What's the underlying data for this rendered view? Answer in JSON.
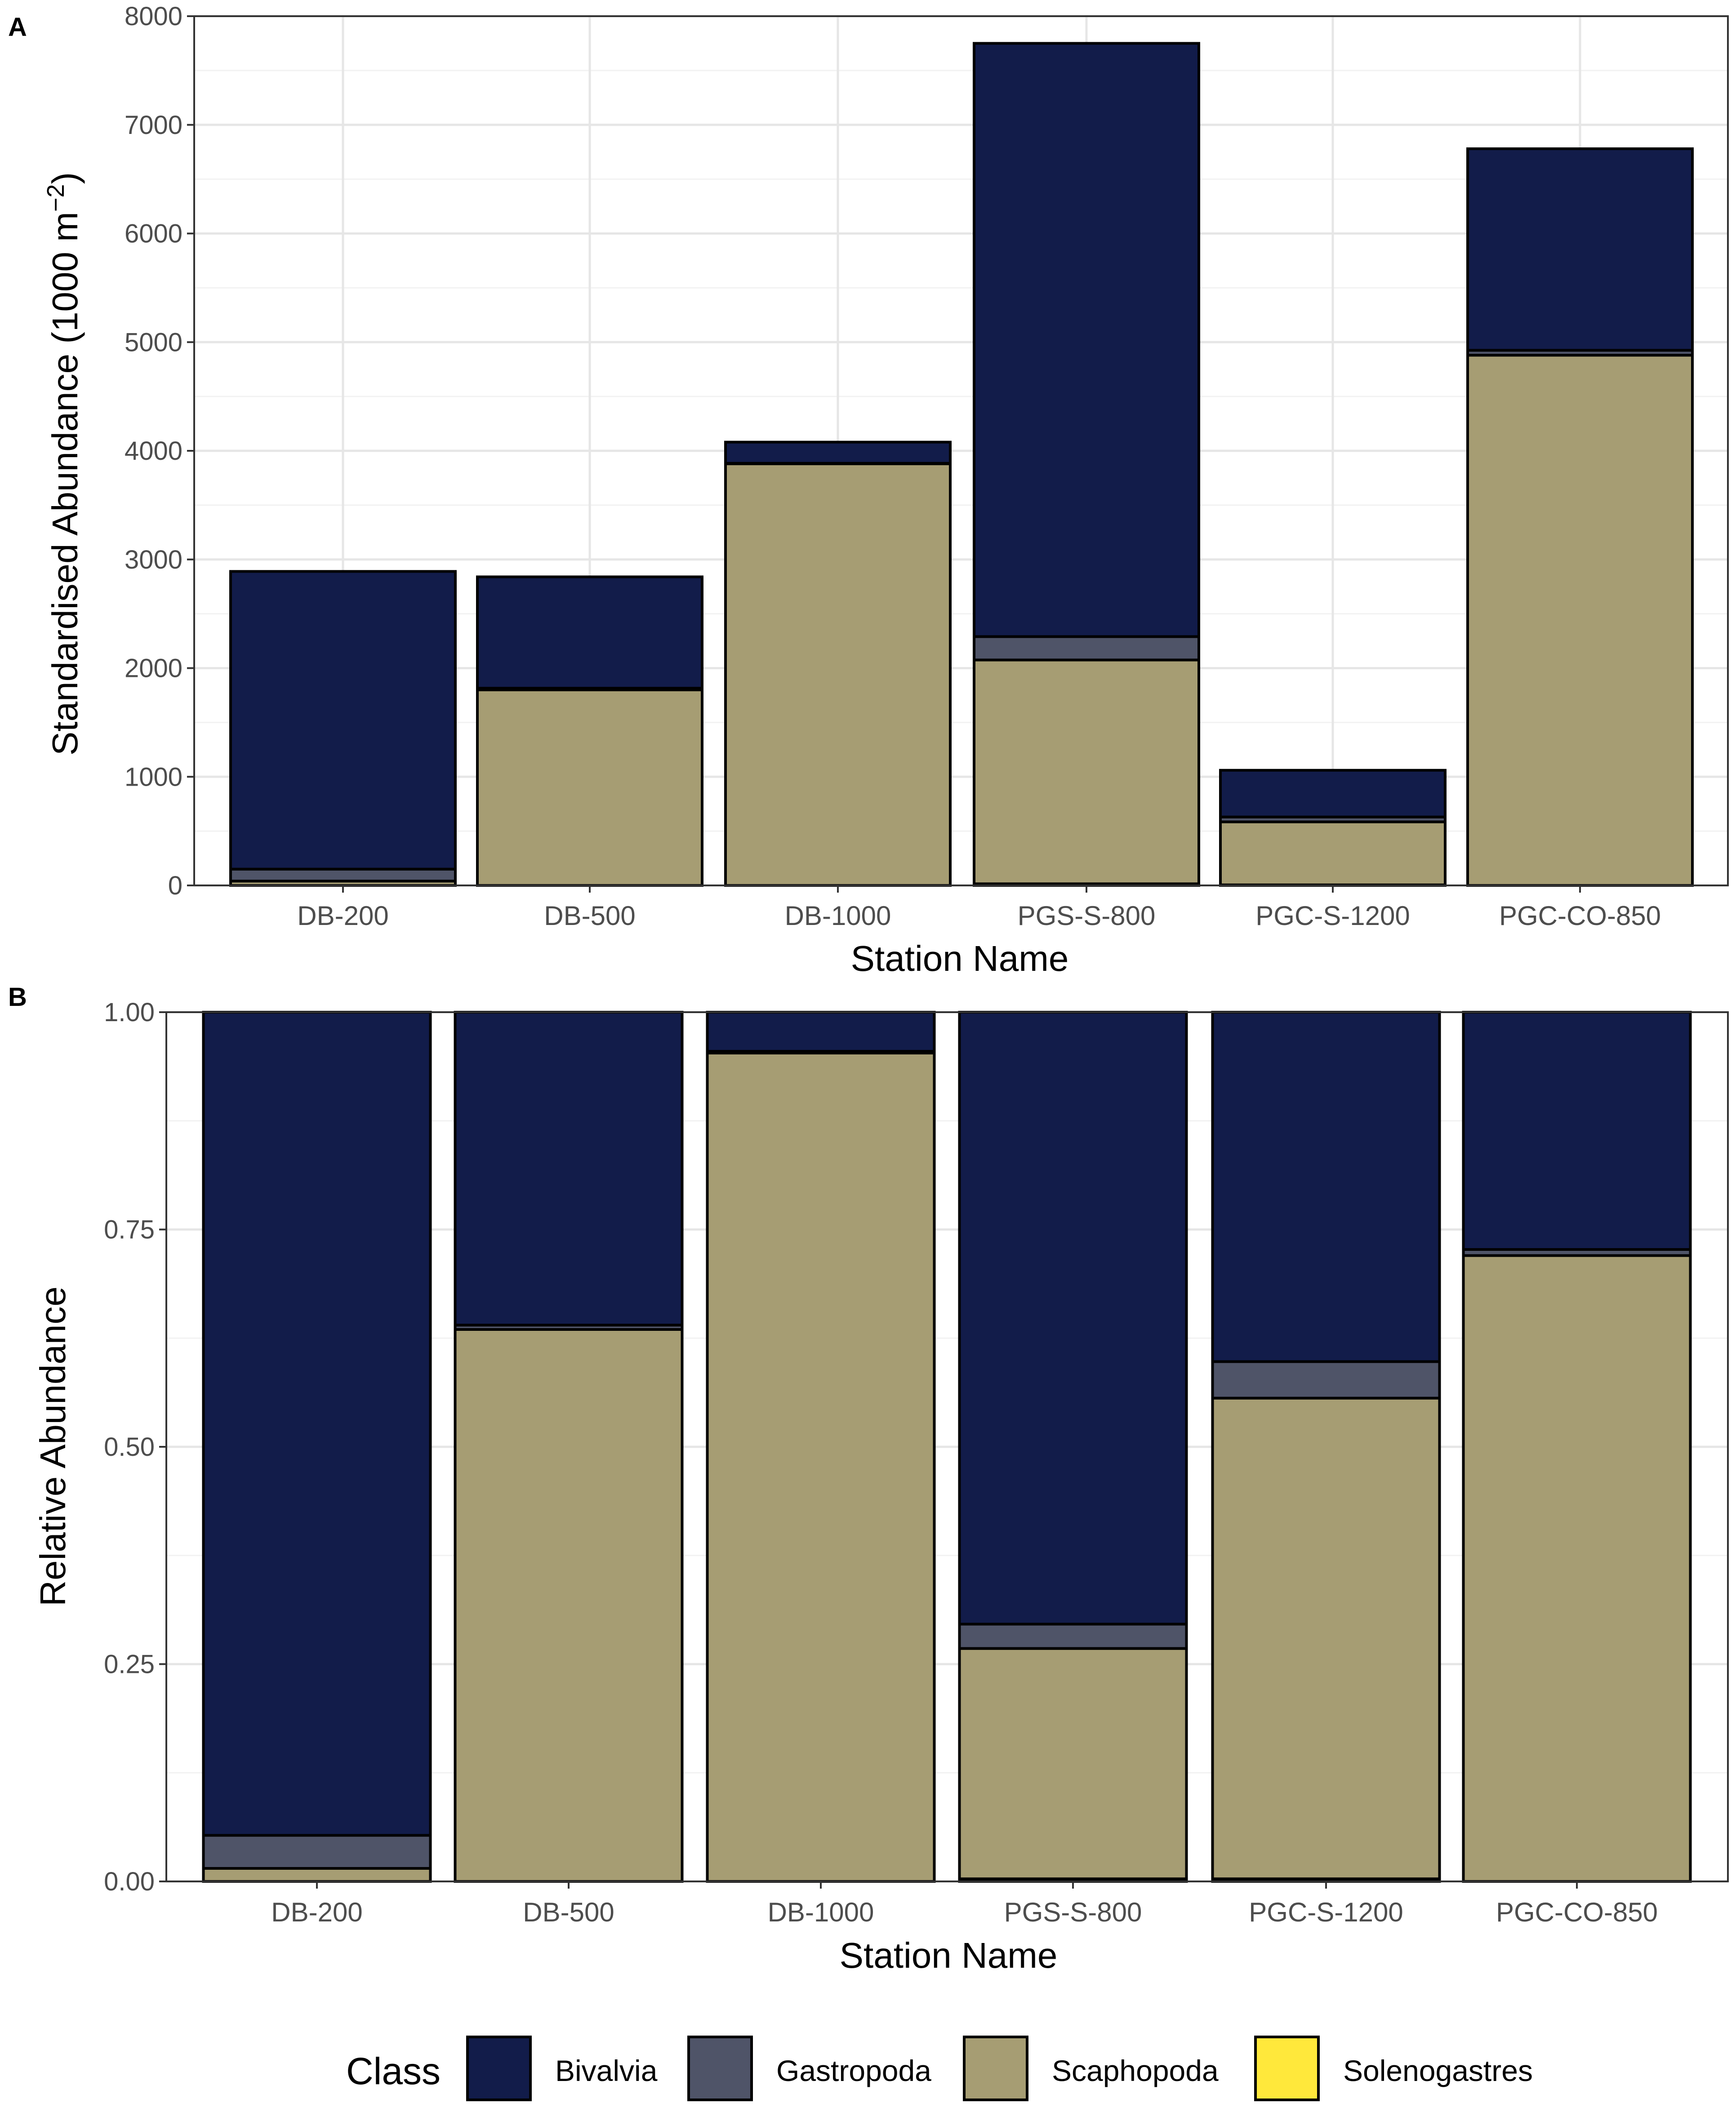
{
  "colors": {
    "Bivalvia": "#121C4A",
    "Gastropoda": "#4F5468",
    "Scaphopoda": "#A69D73",
    "Solenogastres": "#FFE83B",
    "grid_major": "#e6e6e6",
    "grid_minor": "#f2f2f2",
    "panel_border": "#333333",
    "bar_outline": "#000000"
  },
  "chart_data": [
    {
      "panel_label": "A",
      "type": "bar",
      "stacked": true,
      "title": "",
      "xlabel": "Station Name",
      "ylabel": "Standardised Abundance (1000 m",
      "ylabel_superscript": "−2",
      "ylabel_close": ")",
      "ylim": [
        0,
        8000
      ],
      "yticks": [
        0,
        1000,
        2000,
        3000,
        4000,
        5000,
        6000,
        7000,
        8000
      ],
      "ytick_labels": [
        "0",
        "1000",
        "2000",
        "3000",
        "4000",
        "5000",
        "6000",
        "7000",
        "8000"
      ],
      "grid": true,
      "categories": [
        "DB-200",
        "DB-500",
        "DB-1000",
        "PGS-S-800",
        "PGC-S-1200",
        "PGC-CO-850"
      ],
      "series": [
        {
          "name": "Solenogastres",
          "values": [
            0,
            0,
            0,
            15,
            5,
            0
          ]
        },
        {
          "name": "Scaphopoda",
          "values": [
            40,
            1800,
            3880,
            2060,
            580,
            4880
          ]
        },
        {
          "name": "Gastropoda",
          "values": [
            110,
            15,
            5,
            215,
            45,
            45
          ]
        },
        {
          "name": "Bivalvia",
          "values": [
            2740,
            1025,
            195,
            5460,
            430,
            1855
          ]
        }
      ]
    },
    {
      "panel_label": "B",
      "type": "bar",
      "stacked": true,
      "title": "",
      "xlabel": "Station Name",
      "ylabel": "Relative Abundance",
      "ylim": [
        0,
        1
      ],
      "yticks": [
        0,
        0.25,
        0.5,
        0.75,
        1
      ],
      "ytick_labels": [
        "0.00",
        "0.25",
        "0.50",
        "0.75",
        "1.00"
      ],
      "grid": true,
      "categories": [
        "DB-200",
        "DB-500",
        "DB-1000",
        "PGS-S-800",
        "PGC-S-1200",
        "PGC-CO-850"
      ],
      "series": [
        {
          "name": "Solenogastres",
          "values": [
            0,
            0,
            0,
            0.003,
            0.003,
            0
          ]
        },
        {
          "name": "Scaphopoda",
          "values": [
            0.015,
            0.635,
            0.953,
            0.265,
            0.553,
            0.72
          ]
        },
        {
          "name": "Gastropoda",
          "values": [
            0.038,
            0.005,
            0.002,
            0.028,
            0.042,
            0.007
          ]
        },
        {
          "name": "Bivalvia",
          "values": [
            0.947,
            0.36,
            0.045,
            0.704,
            0.402,
            0.273
          ]
        }
      ]
    }
  ],
  "legend": {
    "title": "Class",
    "position": "bottom",
    "items": [
      "Bivalvia",
      "Gastropoda",
      "Scaphopoda",
      "Solenogastres"
    ]
  }
}
